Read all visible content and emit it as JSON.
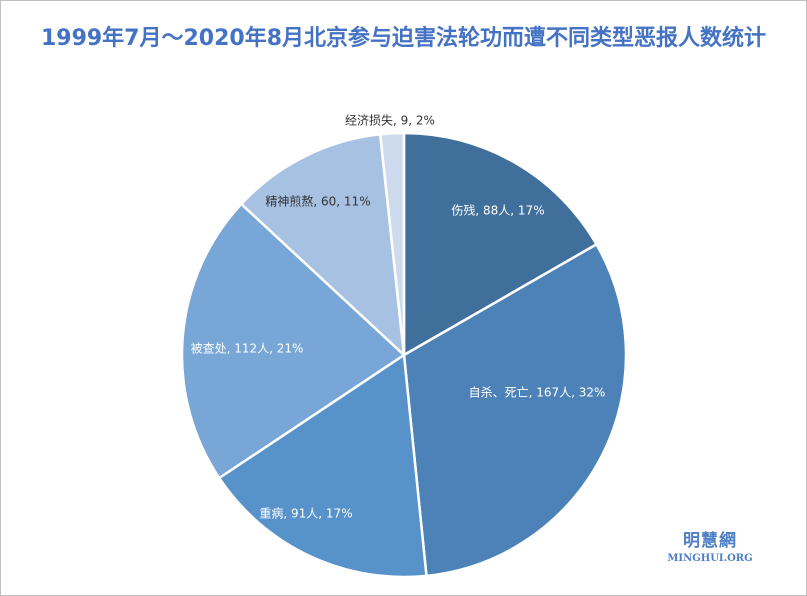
{
  "chart_data": {
    "type": "pie",
    "title": "1999年7月～2020年8月北京参与迫害法轮功而遭不同类型恶报人数统计",
    "slices": [
      {
        "label": "伤残, 88人, 17%",
        "value": 88,
        "color": "#416f9c",
        "label_color": "#ffffff"
      },
      {
        "label": "自杀、死亡, 167人, 32%",
        "value": 167,
        "color": "#4d82b8",
        "label_color": "#ffffff"
      },
      {
        "label": "重病, 91人, 17%",
        "value": 91,
        "color": "#5792cb",
        "label_color": "#ffffff"
      },
      {
        "label": "被查处, 112人, 21%",
        "value": 112,
        "color": "#77a6d7",
        "label_color": "#ffffff"
      },
      {
        "label": "精神煎熬, 60, 11%",
        "value": 60,
        "color": "#a7c1e2",
        "label_color": "#333333"
      },
      {
        "label": "经济损失, 9, 2%",
        "value": 9,
        "color": "#cedbee",
        "label_color": "#333333"
      }
    ]
  },
  "watermark": {
    "cn": "明慧網",
    "en": "MINGHUI.ORG"
  }
}
